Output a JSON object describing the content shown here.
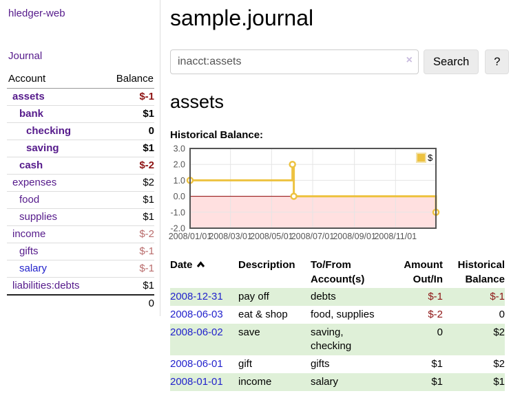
{
  "app": {
    "brand": "hledger-web",
    "nav_journal": "Journal"
  },
  "colors": {
    "link_purple": "#551a8b",
    "link_blue": "#2222cc",
    "negative_strong": "#8e1414",
    "negative_light": "#b96c6c",
    "stripe_green": "#dff0d8",
    "series_yellow": "#edc240",
    "zero_line": "#8b0000"
  },
  "sidebar": {
    "table": {
      "headers": {
        "account": "Account",
        "balance": "Balance"
      },
      "rows": [
        {
          "name": "assets",
          "balance": "$-1",
          "depth": 0,
          "bold": true,
          "negative": "strong"
        },
        {
          "name": "bank",
          "balance": "$1",
          "depth": 1,
          "bold": true,
          "negative": null
        },
        {
          "name": "checking",
          "balance": "0",
          "depth": 2,
          "bold": true,
          "negative": null
        },
        {
          "name": "saving",
          "balance": "$1",
          "depth": 2,
          "bold": true,
          "negative": null
        },
        {
          "name": "cash",
          "balance": "$-2",
          "depth": 1,
          "bold": true,
          "negative": "strong"
        },
        {
          "name": "expenses",
          "balance": "$2",
          "depth": 0,
          "bold": false,
          "negative": null
        },
        {
          "name": "food",
          "balance": "$1",
          "depth": 1,
          "bold": false,
          "negative": null
        },
        {
          "name": "supplies",
          "balance": "$1",
          "depth": 1,
          "bold": false,
          "negative": null
        },
        {
          "name": "income",
          "balance": "$-2",
          "depth": 0,
          "bold": false,
          "negative": "light"
        },
        {
          "name": "gifts",
          "balance": "$-1",
          "depth": 1,
          "bold": false,
          "negative": "light"
        },
        {
          "name": "salary",
          "balance": "$-1",
          "depth": 1,
          "bold": false,
          "negative": "light"
        },
        {
          "name": "liabilities:debts",
          "balance": "$1",
          "depth": 0,
          "bold": false,
          "negative": null
        }
      ],
      "total": "0"
    }
  },
  "main": {
    "title": "sample.journal",
    "search": {
      "value": "inacct:assets",
      "clear_icon": "×",
      "button_label": "Search",
      "help_label": "?"
    },
    "account_heading": "assets",
    "chart_title": "Historical Balance:"
  },
  "chart_data": {
    "type": "line",
    "title": "Historical Balance:",
    "step": true,
    "series": [
      {
        "name": "$",
        "color": "#edc240",
        "points": [
          [
            "2008-01-01",
            1.0
          ],
          [
            "2008-06-01",
            2.0
          ],
          [
            "2008-06-03",
            0.0
          ],
          [
            "2008-12-31",
            -1.0
          ]
        ]
      }
    ],
    "x_domain": [
      "2008-01-01",
      "2008-12-31"
    ],
    "x_ticks": [
      "2008/01/01",
      "2008/03/01",
      "2008/05/01",
      "2008/07/01",
      "2008/09/01",
      "2008/11/01"
    ],
    "y_ticks": [
      3.0,
      2.0,
      1.0,
      0.0,
      -1.0,
      -2.0
    ],
    "ylim": [
      -2,
      3
    ],
    "grid": true,
    "legend": {
      "label": "$",
      "position": "top-right"
    },
    "negative_region": true
  },
  "register": {
    "headers": {
      "date": "Date",
      "description": "Description",
      "accounts": "To/From Account(s)",
      "amount": "Amount Out/In",
      "balance": "Historical Balance"
    },
    "rows": [
      {
        "date": "2008-12-31",
        "description": "pay off",
        "accounts": "debts",
        "amount": "$-1",
        "balance": "$-1"
      },
      {
        "date": "2008-06-03",
        "description": "eat & shop",
        "accounts": "food, supplies",
        "amount": "$-2",
        "balance": "0"
      },
      {
        "date": "2008-06-02",
        "description": "save",
        "accounts": "saving, checking",
        "amount": "0",
        "balance": "$2"
      },
      {
        "date": "2008-06-01",
        "description": "gift",
        "accounts": "gifts",
        "amount": "$1",
        "balance": "$2"
      },
      {
        "date": "2008-01-01",
        "description": "income",
        "accounts": "salary",
        "amount": "$1",
        "balance": "$1"
      }
    ]
  }
}
